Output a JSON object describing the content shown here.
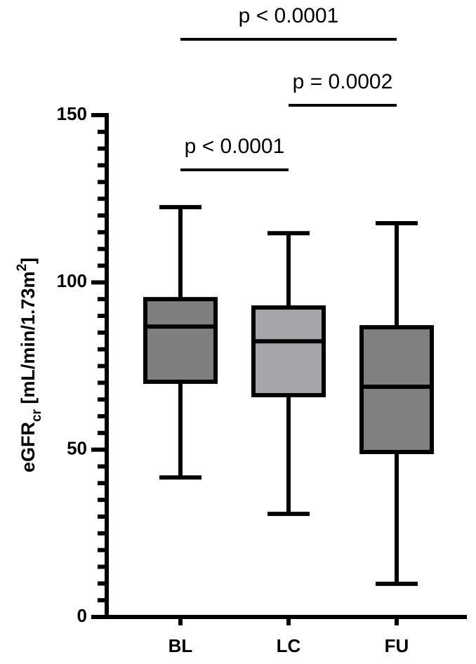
{
  "chart_data": {
    "type": "box",
    "ylabel": {
      "main": "eGFR",
      "sub": "cr",
      "unit": " [mL/min/1.73m",
      "sup": "2",
      "close": "]"
    },
    "categories": [
      "BL",
      "LC",
      "FU"
    ],
    "boxes": [
      {
        "whislo": 41.7,
        "q1": 70.3,
        "med": 86.8,
        "q3": 95.0,
        "whishi": 122.5,
        "color": "#7f7f7f"
      },
      {
        "whislo": 30.8,
        "q1": 66.3,
        "med": 82.4,
        "q3": 92.5,
        "whishi": 114.7,
        "color": "#a6a6aa"
      },
      {
        "whislo": 9.9,
        "q1": 49.3,
        "med": 68.8,
        "q3": 86.6,
        "whishi": 117.7,
        "color": "#808080"
      }
    ],
    "ylim": [
      0,
      150
    ],
    "yticks": [
      0,
      50,
      100,
      150
    ],
    "minor_yticks": [
      5,
      10,
      15,
      20,
      25,
      30,
      35,
      40,
      45,
      55,
      60,
      65,
      70,
      75,
      80,
      85,
      90,
      95,
      105,
      110,
      115,
      120,
      125,
      130,
      135,
      140,
      145
    ],
    "comparisons": [
      {
        "groups": [
          "BL",
          "LC"
        ],
        "label": "p < 0.0001"
      },
      {
        "groups": [
          "LC",
          "FU"
        ],
        "label": "p = 0.0002"
      },
      {
        "groups": [
          "BL",
          "FU"
        ],
        "label": "p < 0.0001"
      }
    ]
  }
}
